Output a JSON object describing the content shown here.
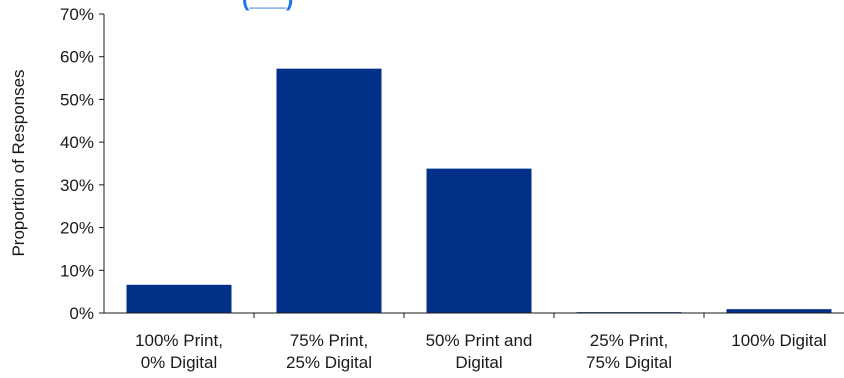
{
  "chart_data": {
    "type": "bar",
    "title": "(___)",
    "categories": [
      [
        "100% Print,",
        "0% Digital"
      ],
      [
        "75% Print,",
        "25% Digital"
      ],
      [
        "50% Print and",
        "Digital"
      ],
      [
        "25% Print,",
        "75% Digital"
      ],
      [
        "100% Digital"
      ]
    ],
    "values": [
      6.6,
      57.2,
      33.8,
      0.2,
      0.9
    ],
    "ylabel": "Proportion of Responses",
    "ylim": [
      0,
      70
    ],
    "yticks": [
      "0%",
      "10%",
      "20%",
      "30%",
      "40%",
      "50%",
      "60%",
      "70%"
    ],
    "grid": false,
    "legend": "none",
    "bar_color": "#003087",
    "axis_color": "#1a1a1a",
    "title_color": "#1a73e8"
  }
}
